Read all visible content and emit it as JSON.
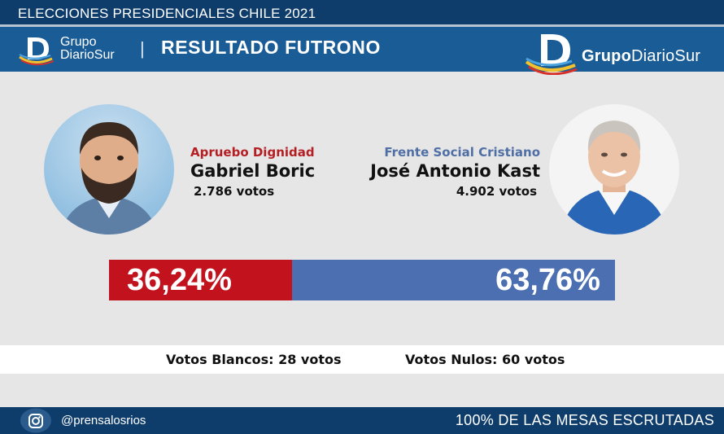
{
  "top_bar": {
    "title": "ELECCIONES PRESIDENCIALES CHILE 2021"
  },
  "header": {
    "logo_small": {
      "line1": "Grupo",
      "line2": "DiarioSur",
      "icon": "diariosur-logo-icon"
    },
    "separator": "|",
    "title": "RESULTADO FUTRONO",
    "logo_big": {
      "brand_bold": "Grupo",
      "brand_rest": "DiarioSur",
      "icon": "diariosur-logo-icon"
    }
  },
  "candidates": {
    "left": {
      "party": "Apruebo Dignidad",
      "name": "Gabriel Boric",
      "votes": "2.786 votos",
      "percent_label": "36,24%",
      "percent": 36.24,
      "color": "#c1121d"
    },
    "right": {
      "party": "Frente Social Cristiano",
      "name": "José Antonio Kast",
      "votes": "4.902 votos",
      "percent_label": "63,76%",
      "percent": 63.76,
      "color": "#4c6fb1"
    }
  },
  "stats": {
    "blancos": "Votos Blancos: 28 votos",
    "nulos": "Votos Nulos: 60 votos"
  },
  "footer": {
    "icon": "instagram-icon",
    "handle": "@prensalosrios",
    "mesas": "100% DE LAS MESAS ESCRUTADAS"
  },
  "colors": {
    "navy": "#0f3d6b",
    "header_blue": "#1a5c95",
    "party_left": "#b51f24",
    "party_right": "#4f6fa5"
  }
}
